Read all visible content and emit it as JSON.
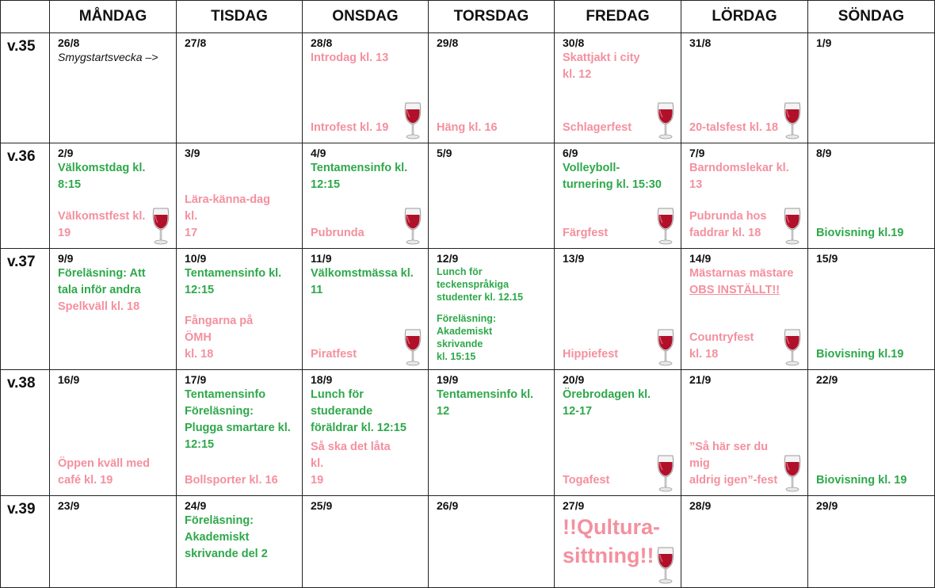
{
  "headers": [
    "MÅNDAG",
    "TISDAG",
    "ONSDAG",
    "TORSDAG",
    "FREDAG",
    "LÖRDAG",
    "SÖNDAG"
  ],
  "weeks": [
    {
      "label": "v.35",
      "days": [
        {
          "date": "26/8",
          "note": "Smygstartsvecka –>",
          "top": [],
          "bottom": []
        },
        {
          "date": "27/8",
          "top": [],
          "bottom": []
        },
        {
          "date": "28/8",
          "top": [
            {
              "text": "Introdag kl. 13",
              "color": "pink"
            }
          ],
          "bottom": [
            {
              "text": "Introfest kl. 19",
              "color": "pink"
            }
          ],
          "glass": true
        },
        {
          "date": "29/8",
          "top": [],
          "bottom": [
            {
              "text": "Häng kl. 16",
              "color": "pink"
            }
          ]
        },
        {
          "date": "30/8",
          "top": [
            {
              "text": "Skattjakt i city\nkl. 12",
              "color": "pink"
            }
          ],
          "bottom": [
            {
              "text": "Schlagerfest",
              "color": "pink"
            }
          ],
          "glass": true
        },
        {
          "date": "31/8",
          "top": [],
          "bottom": [
            {
              "text": "20-talsfest kl. 18",
              "color": "pink"
            }
          ],
          "glass": true
        },
        {
          "date": "1/9",
          "top": [],
          "bottom": []
        }
      ]
    },
    {
      "label": "v.36",
      "days": [
        {
          "date": "2/9",
          "top": [
            {
              "text": "Välkomstdag kl.\n8:15",
              "color": "green"
            }
          ],
          "bottom": [
            {
              "text": "Välkomstfest kl. 19",
              "color": "pink"
            }
          ],
          "glass": true
        },
        {
          "date": "3/9",
          "top": [],
          "bottom": [
            {
              "text": "Lära-känna-dag kl.\n17",
              "color": "pink"
            }
          ]
        },
        {
          "date": "4/9",
          "top": [
            {
              "text": "Tentamensinfo kl.\n12:15",
              "color": "green"
            }
          ],
          "bottom": [
            {
              "text": "Pubrunda",
              "color": "pink"
            }
          ],
          "glass": true
        },
        {
          "date": "5/9",
          "top": [],
          "bottom": []
        },
        {
          "date": "6/9",
          "top": [
            {
              "text": "Volleyboll-\nturnering kl. 15:30",
              "color": "green"
            }
          ],
          "bottom": [
            {
              "text": "Färgfest",
              "color": "pink"
            }
          ],
          "glass": true
        },
        {
          "date": "7/9",
          "top": [
            {
              "text": "Barndomslekar kl.\n13",
              "color": "pink"
            }
          ],
          "bottom": [
            {
              "text": "Pubrunda hos\nfaddrar kl. 18",
              "color": "pink"
            }
          ],
          "glass": true
        },
        {
          "date": "8/9",
          "top": [],
          "bottom": [
            {
              "text": "Biovisning kl.19",
              "color": "green"
            }
          ]
        }
      ]
    },
    {
      "label": "v.37",
      "days": [
        {
          "date": "9/9",
          "top": [
            {
              "text": "Föreläsning: Att\ntala inför andra",
              "color": "green"
            },
            {
              "text": "Spelkväll kl. 18",
              "color": "pink"
            }
          ],
          "bottom": []
        },
        {
          "date": "10/9",
          "top": [
            {
              "text": "Tentamensinfo kl.\n12:15",
              "color": "green"
            }
          ],
          "bottom": [
            {
              "text": "Fångarna på ÖMH\nkl. 18",
              "color": "pink"
            }
          ]
        },
        {
          "date": "11/9",
          "top": [
            {
              "text": "Välkomstmässa kl.\n11",
              "color": "green"
            }
          ],
          "bottom": [
            {
              "text": "Piratfest",
              "color": "pink"
            }
          ],
          "glass": true
        },
        {
          "date": "12/9",
          "small": true,
          "top": [
            {
              "text": "Lunch för\nteckenspråkiga\nstudenter kl. 12.15",
              "color": "green"
            }
          ],
          "bottom": [
            {
              "text": "Föreläsning:\nAkademiskt skrivande\nkl. 15:15",
              "color": "green"
            }
          ]
        },
        {
          "date": "13/9",
          "top": [],
          "bottom": [
            {
              "text": "Hippiefest",
              "color": "pink"
            }
          ],
          "glass": true
        },
        {
          "date": "14/9",
          "top": [
            {
              "text": "Mästarnas mästare",
              "color": "pink"
            },
            {
              "text": "OBS INSTÄLLT!!",
              "color": "pink",
              "underline": true
            }
          ],
          "bottom": [
            {
              "text": "Countryfest\nkl. 18",
              "color": "pink"
            }
          ],
          "glass": true
        },
        {
          "date": "15/9",
          "top": [],
          "bottom": [
            {
              "text": "Biovisning kl.19",
              "color": "green"
            }
          ]
        }
      ]
    },
    {
      "label": "v.38",
      "days": [
        {
          "date": "16/9",
          "top": [],
          "bottom": [
            {
              "text": "Öppen kväll med\ncafé kl. 19",
              "color": "pink"
            }
          ]
        },
        {
          "date": "17/9",
          "top": [
            {
              "text": "Tentamensinfo\nFöreläsning:\nPlugga smartare kl.\n12:15",
              "color": "green"
            }
          ],
          "bottom": [
            {
              "text": "Bollsporter kl. 16",
              "color": "pink"
            }
          ]
        },
        {
          "date": "18/9",
          "top": [
            {
              "text": "Lunch för\nstuderande\nföräldrar kl. 12:15",
              "color": "green"
            }
          ],
          "bottom": [
            {
              "text": "Så ska det låta kl.\n19",
              "color": "pink"
            }
          ]
        },
        {
          "date": "19/9",
          "top": [
            {
              "text": "Tentamensinfo kl.\n12",
              "color": "green"
            }
          ],
          "bottom": []
        },
        {
          "date": "20/9",
          "top": [
            {
              "text": "Örebrodagen kl.\n12-17",
              "color": "green"
            }
          ],
          "bottom": [
            {
              "text": "Togafest",
              "color": "pink"
            }
          ],
          "glass": true
        },
        {
          "date": "21/9",
          "top": [],
          "bottom": [
            {
              "text": "”Så här ser du mig\naldrig igen”-fest",
              "color": "pink"
            }
          ],
          "glass": true
        },
        {
          "date": "22/9",
          "top": [],
          "bottom": [
            {
              "text": "Biovisning kl. 19",
              "color": "green"
            }
          ]
        }
      ]
    },
    {
      "label": "v.39",
      "days": [
        {
          "date": "23/9",
          "top": [],
          "bottom": []
        },
        {
          "date": "24/9",
          "top": [
            {
              "text": "Föreläsning:\nAkademiskt\nskrivande del 2",
              "color": "green"
            }
          ],
          "bottom": []
        },
        {
          "date": "25/9",
          "top": [],
          "bottom": []
        },
        {
          "date": "26/9",
          "top": [],
          "bottom": []
        },
        {
          "date": "27/9",
          "big": true,
          "top": [
            {
              "text": "!!Qultura-\nsittning!!",
              "color": "pink"
            }
          ],
          "bottom": [],
          "glass": true
        },
        {
          "date": "28/9",
          "top": [],
          "bottom": []
        },
        {
          "date": "29/9",
          "top": [],
          "bottom": []
        }
      ]
    }
  ],
  "icons": {
    "wine": "wine-glass-icon"
  },
  "colors": {
    "pink": "#f4909e",
    "green": "#2ea84a"
  }
}
